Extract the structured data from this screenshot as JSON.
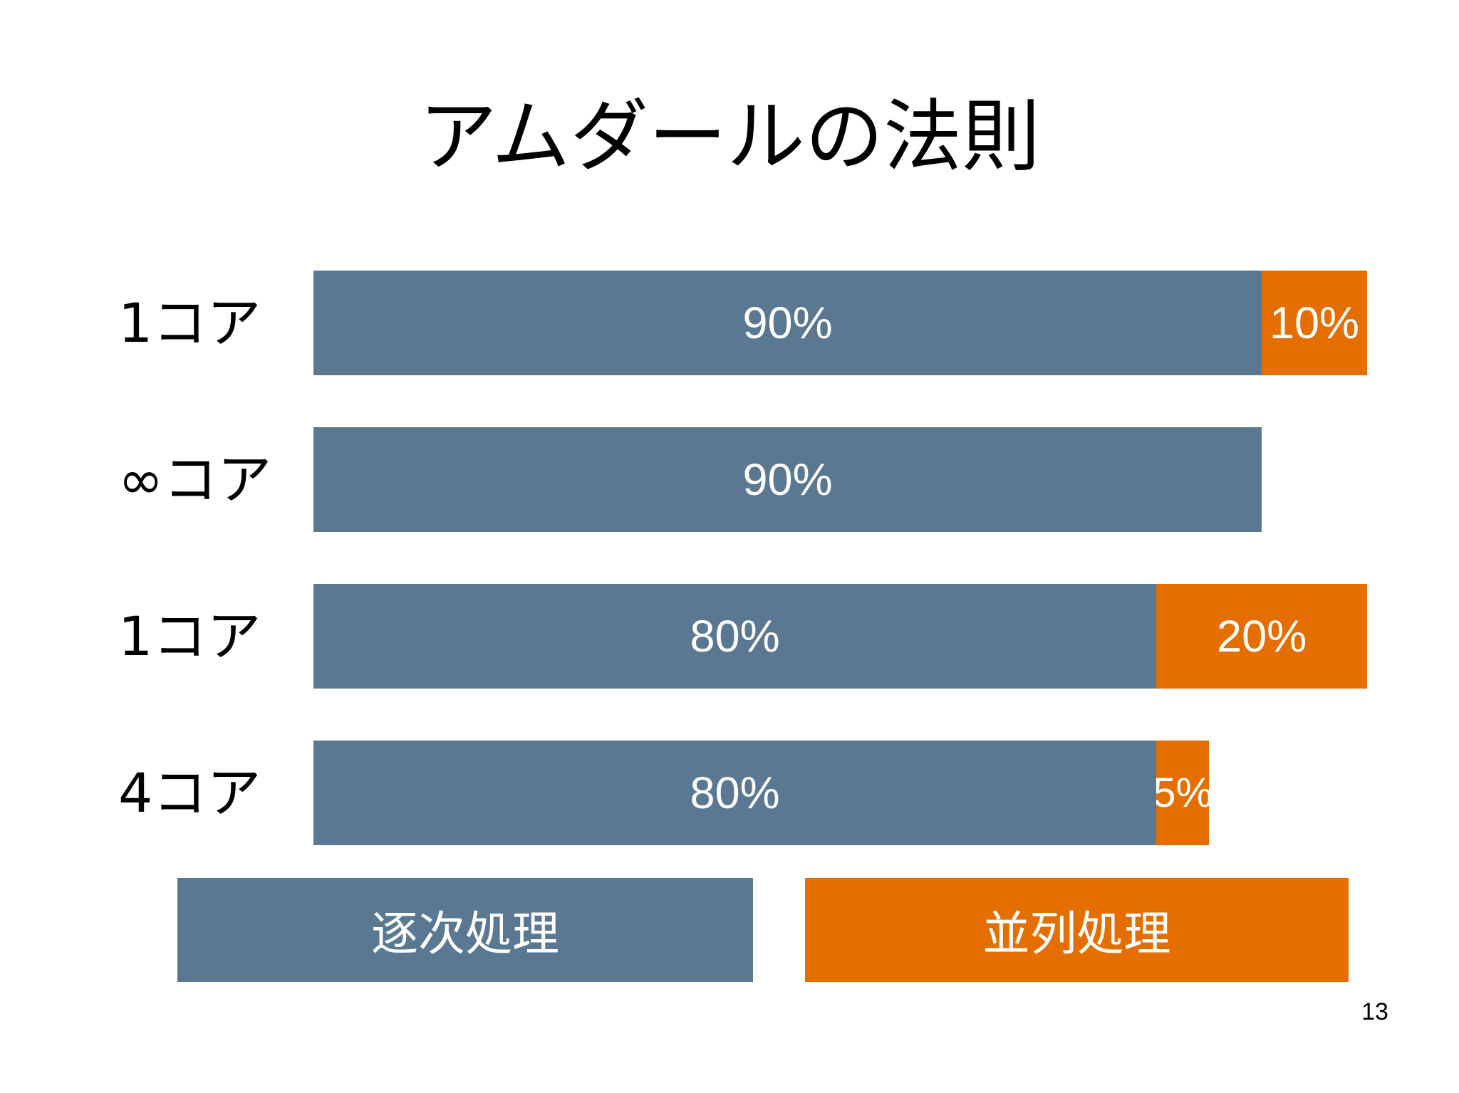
{
  "title": "アムダールの法則",
  "colors": {
    "sequential": "#5b7893",
    "parallel": "#e46f00"
  },
  "rows": [
    {
      "label": "1コア",
      "segments": [
        {
          "kind": "sequential",
          "label": "90%",
          "share": 0.9
        },
        {
          "kind": "parallel",
          "label": "10%",
          "share": 0.1
        }
      ]
    },
    {
      "label": "∞コア",
      "segments": [
        {
          "kind": "sequential",
          "label": "90%",
          "share": 0.9
        }
      ]
    },
    {
      "label": "1コア",
      "segments": [
        {
          "kind": "sequential",
          "label": "80%",
          "share": 0.8
        },
        {
          "kind": "parallel",
          "label": "20%",
          "share": 0.2
        }
      ]
    },
    {
      "label": "4コア",
      "segments": [
        {
          "kind": "sequential",
          "label": "80%",
          "share": 0.8
        },
        {
          "kind": "parallel",
          "label": "5%",
          "share": 0.05
        }
      ]
    }
  ],
  "legend": {
    "sequential": "逐次処理",
    "parallel": "並列処理"
  },
  "page_number": "13"
}
